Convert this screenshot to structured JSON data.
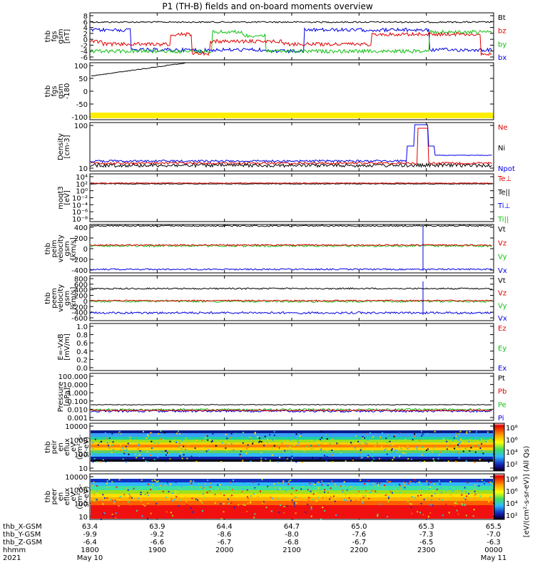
{
  "title": "P1 (TH-B) fields and on-board moments overview",
  "colors": {
    "black": "#000000",
    "red": "#e00000",
    "green": "#10c010",
    "blue": "#0000e0",
    "yellow": "#ffee00"
  },
  "chart_data": [
    {
      "type": "line",
      "ylabel": [
        "thb",
        "fgs",
        "gsm",
        "[nT]"
      ],
      "yticks": [
        "8",
        "6",
        "4",
        "2",
        "0",
        "-2",
        "-4",
        "-6"
      ],
      "ylim": [
        -7,
        9
      ],
      "series": [
        {
          "name": "Bt",
          "color": "red",
          "values": []
        },
        {
          "name": "bz",
          "color": "red"
        },
        {
          "name": "by",
          "color": "green"
        },
        {
          "name": "bx",
          "color": "blue"
        }
      ],
      "legend": [
        "Bt",
        "bz",
        "by",
        "bx"
      ]
    },
    {
      "type": "line",
      "ylabel": [
        "thb",
        "fgs",
        "gsm",
        "-180"
      ],
      "ylabel2": "[nT]",
      "yticks": [
        "100",
        "50",
        "0",
        "-50",
        "-100"
      ],
      "ylim": [
        -130,
        110
      ]
    },
    {
      "type": "line",
      "ylabel": [
        "Density",
        "[cm-3]"
      ],
      "yticks": [
        "100",
        "10"
      ],
      "legend": [
        "Ne",
        "Ni",
        "Npot"
      ]
    },
    {
      "type": "line",
      "ylabel": [
        "moqt3",
        "[eV]"
      ],
      "yticks": [
        "10⁴",
        "10²",
        "10⁰",
        "10⁻²",
        "10⁻⁴",
        "10⁻⁶",
        "10⁻⁸"
      ],
      "legend": [
        "Te⊥",
        "Te||",
        "Ti⊥",
        "Ti||"
      ]
    },
    {
      "type": "line",
      "ylabel": [
        "thb",
        "peim",
        "velocity",
        "gsm",
        "[km/s]"
      ],
      "yticks": [
        "400",
        "200",
        "0",
        "-200",
        "-400"
      ],
      "legend": [
        "Vt",
        "Vz",
        "Vy",
        "Vx"
      ]
    },
    {
      "type": "line",
      "ylabel": [
        "thb",
        "peem",
        "velocity",
        "gsm",
        "[km/s]"
      ],
      "yticks": [
        "800",
        "600",
        "400",
        "200",
        "0",
        "-200",
        "-400",
        "-600"
      ],
      "legend": [
        "Vt",
        "Vz",
        "Vy",
        "Vx"
      ]
    },
    {
      "type": "line",
      "ylabel": [
        "E=-VxB",
        "[mV/m]"
      ],
      "yticks": [
        "1.0",
        "0.8",
        "0.6",
        "0.4",
        "0.2",
        "0.0"
      ],
      "legend": [
        "Ez",
        "Ey",
        "Ex"
      ]
    },
    {
      "type": "line",
      "ylabel": [
        "Pressure",
        "[nPa]"
      ],
      "yticks": [
        "100.000",
        "10.000",
        "1.000",
        "0.100",
        "0.010",
        "0.001"
      ],
      "legend": [
        "Pt",
        "Pb",
        "Pe",
        "Pi"
      ]
    },
    {
      "type": "heatmap",
      "ylabel": [
        "thb",
        "peir",
        "en",
        "eflux",
        "eV",
        "(cm²-s-",
        "sr-eV)"
      ],
      "yticks": [
        "10000",
        "1000",
        "100",
        "10"
      ]
    },
    {
      "type": "heatmap",
      "ylabel": [
        "thb",
        "peer",
        "en",
        "eflux",
        "eV",
        "(cm²-s-",
        "sr-eV)"
      ],
      "yticks": [
        "10000",
        "1000",
        "100",
        "10"
      ]
    }
  ],
  "colorbar": {
    "ticks1": [
      "10⁸",
      "10⁶",
      "10⁴",
      "10²"
    ],
    "ticks2": [
      "10⁸",
      "10⁶",
      "10⁴",
      "10²"
    ],
    "label": "[eV/(cm²-s-sr-eV)] (All Qs)"
  },
  "xaxis": {
    "rowlabels": [
      "thb_X-GSM",
      "thb_Y-GSM",
      "thb_Z-GSM",
      "hhmm",
      "2021"
    ],
    "ticks": [
      {
        "r": "63.4",
        "x": "-9.9",
        "y": "-6.4",
        "hhmm": "1800",
        "d": "May 10"
      },
      {
        "r": "63.9",
        "x": "-9.2",
        "y": "-6.6",
        "hhmm": "1900",
        "d": ""
      },
      {
        "r": "64.4",
        "x": "-8.6",
        "y": "-6.7",
        "hhmm": "2000",
        "d": ""
      },
      {
        "r": "64.7",
        "x": "-8.0",
        "y": "-6.8",
        "hhmm": "2100",
        "d": ""
      },
      {
        "r": "65.0",
        "x": "-7.6",
        "y": "-6.7",
        "hhmm": "2200",
        "d": ""
      },
      {
        "r": "65.3",
        "x": "-7.3",
        "y": "-6.5",
        "hhmm": "2300",
        "d": ""
      },
      {
        "r": "65.5",
        "x": "-7.0",
        "y": "-6.3",
        "hhmm": "0000",
        "d": "May 11"
      }
    ]
  }
}
